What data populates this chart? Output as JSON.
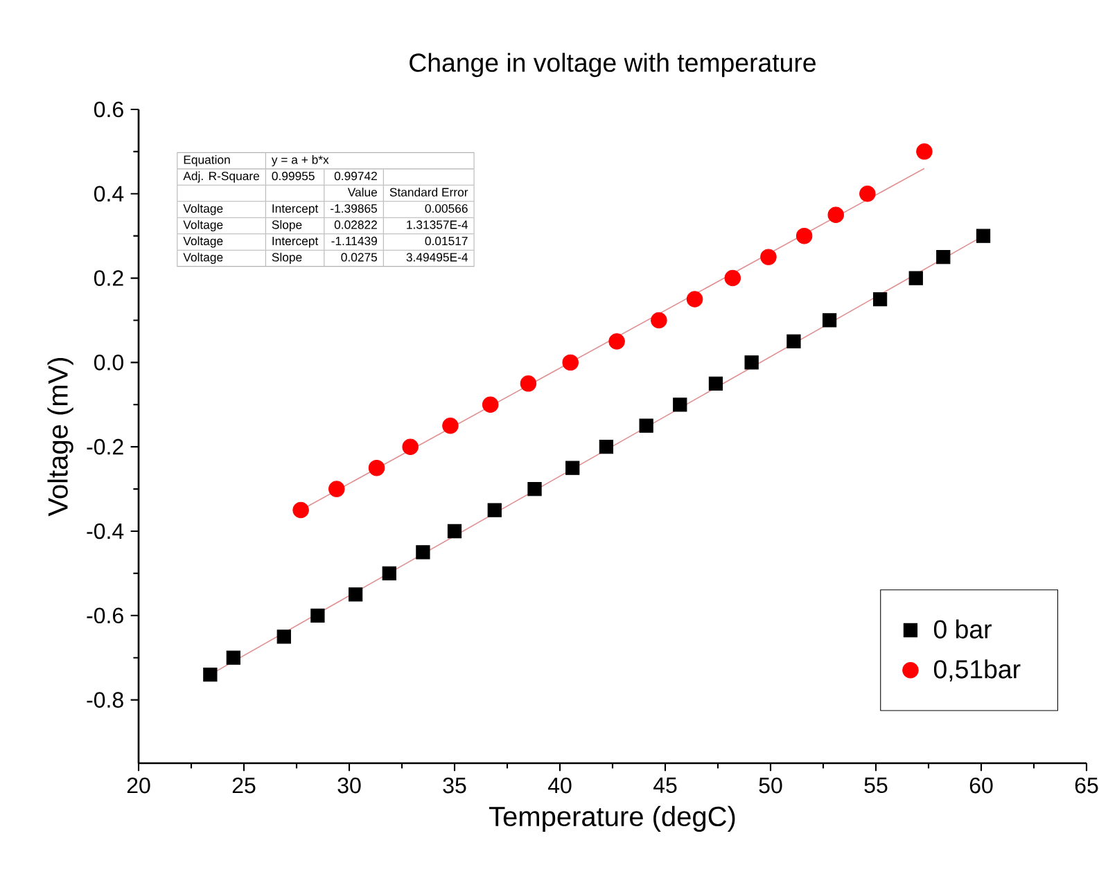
{
  "chart_data": {
    "type": "scatter",
    "title": "Change in voltage with temperature",
    "xlabel": "Temperature (degC)",
    "ylabel": "Voltage (mV)",
    "xlim": [
      20,
      65
    ],
    "xticks": [
      20,
      25,
      30,
      35,
      40,
      45,
      50,
      55,
      60,
      65
    ],
    "ylim": [
      -0.95,
      0.6
    ],
    "yticks": [
      -0.8,
      -0.6,
      -0.4,
      -0.2,
      {
        "value": 0,
        "label": "0.0"
      },
      0.2,
      0.4,
      0.6
    ],
    "grid": false,
    "legend": "bottom right",
    "series": [
      {
        "name": "0 bar",
        "color": "#000000",
        "marker": "square",
        "x": [
          23.4,
          24.5,
          26.9,
          28.5,
          30.3,
          31.9,
          33.5,
          35.0,
          36.9,
          38.8,
          40.6,
          42.2,
          44.1,
          45.7,
          47.4,
          49.1,
          51.1,
          52.8,
          55.2,
          56.9,
          58.2,
          60.1
        ],
        "values": [
          -0.74,
          -0.7,
          -0.65,
          -0.6,
          -0.55,
          -0.5,
          -0.45,
          -0.4,
          -0.35,
          -0.3,
          -0.25,
          -0.2,
          -0.15,
          -0.1,
          -0.05,
          0.0,
          0.05,
          0.1,
          0.15,
          0.2,
          0.25,
          0.3
        ]
      },
      {
        "name": "0,51bar",
        "color": "#ff0000",
        "marker": "circle",
        "x": [
          27.7,
          29.4,
          31.3,
          32.9,
          34.8,
          36.7,
          38.5,
          40.5,
          42.7,
          44.7,
          46.4,
          48.2,
          49.9,
          51.6,
          53.1,
          54.6,
          57.3
        ],
        "values": [
          -0.35,
          -0.3,
          -0.25,
          -0.2,
          -0.15,
          -0.1,
          -0.05,
          0.0,
          0.05,
          0.1,
          0.15,
          0.2,
          0.25,
          0.3,
          0.35,
          0.4,
          0.5
        ]
      },
      {
        "type": "line",
        "color": "#e09090",
        "marker": "none",
        "x": [
          23.4,
          60.1
        ],
        "values": [
          -0.74,
          0.3
        ]
      },
      {
        "type": "line",
        "color": "#e09090",
        "marker": "none",
        "x": [
          27.7,
          57.3
        ],
        "values": [
          -0.35,
          0.46
        ]
      }
    ],
    "annotations": [
      "Equation",
      "y = a + b*x",
      "Adj. R-Square",
      "0.99955",
      "0.99742",
      "Value",
      "Standard Error",
      "Voltage",
      "Intercept",
      "-1.39865",
      "0.00566",
      "Voltage",
      "Slope",
      "0.02822",
      "1.31357E-4",
      "Voltage",
      "Intercept",
      "-1.11439",
      "0.01517",
      "Voltage",
      "Slope",
      "0.0275",
      "3.49495E-4"
    ]
  }
}
